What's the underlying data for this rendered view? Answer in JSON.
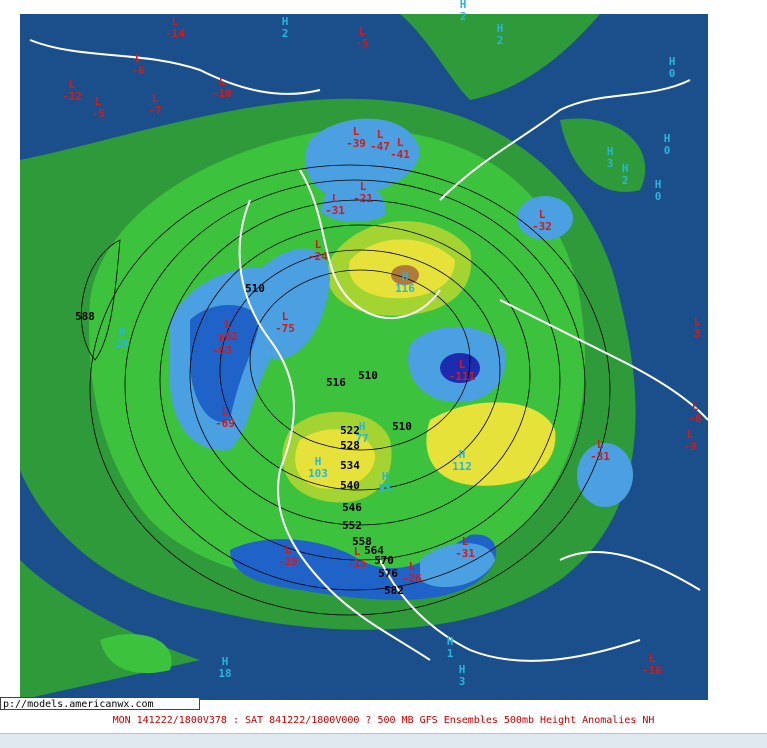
{
  "url_box": "p://models.americanwx.com",
  "caption": "MON 141222/1800V378 : SAT 841222/1800V000  ? 500 MB GFS Ensembles 500mb Height Anomalies NH",
  "centers": [
    {
      "letter": "L",
      "value": "-14"
    },
    {
      "letter": "L",
      "value": "-5"
    },
    {
      "letter": "L",
      "value": "-6"
    },
    {
      "letter": "L",
      "value": "-10"
    },
    {
      "letter": "L",
      "value": "-12"
    },
    {
      "letter": "L",
      "value": "-5"
    },
    {
      "letter": "L",
      "value": "-7"
    },
    {
      "letter": "L",
      "value": "-39"
    },
    {
      "letter": "L",
      "value": "-47"
    },
    {
      "letter": "L",
      "value": "-41"
    },
    {
      "letter": "L",
      "value": "-21"
    },
    {
      "letter": "L",
      "value": "-31"
    },
    {
      "letter": "L",
      "value": "-24"
    },
    {
      "letter": "L",
      "value": "-75"
    },
    {
      "letter": "L",
      "value": "-61"
    },
    {
      "letter": "L",
      "value": "-63"
    },
    {
      "letter": "L",
      "value": "-69"
    },
    {
      "letter": "L",
      "value": "-32"
    },
    {
      "letter": "L",
      "value": "-111"
    },
    {
      "letter": "L",
      "value": "-31"
    },
    {
      "letter": "L",
      "value": "-31"
    },
    {
      "letter": "L",
      "value": "-26"
    },
    {
      "letter": "L",
      "value": "-19"
    },
    {
      "letter": "L",
      "value": "-15"
    },
    {
      "letter": "L",
      "value": "-16"
    },
    {
      "letter": "L",
      "value": "-8"
    },
    {
      "letter": "L",
      "value": "-9"
    },
    {
      "letter": "L",
      "value": "3"
    },
    {
      "letter": "H",
      "value": "2"
    },
    {
      "letter": "H",
      "value": "2"
    },
    {
      "letter": "H",
      "value": "2"
    },
    {
      "letter": "H",
      "value": "0"
    },
    {
      "letter": "H",
      "value": "0"
    },
    {
      "letter": "H",
      "value": "3"
    },
    {
      "letter": "H",
      "value": "2"
    },
    {
      "letter": "H",
      "value": "0"
    },
    {
      "letter": "H",
      "value": "116"
    },
    {
      "letter": "H",
      "value": "77"
    },
    {
      "letter": "H",
      "value": "95"
    },
    {
      "letter": "H",
      "value": "103"
    },
    {
      "letter": "H",
      "value": "112"
    },
    {
      "letter": "H",
      "value": "18"
    },
    {
      "letter": "H",
      "value": "20"
    },
    {
      "letter": "H",
      "value": "3"
    },
    {
      "letter": "H",
      "value": "1"
    }
  ],
  "contours": [
    "588",
    "510",
    "516",
    "510",
    "510",
    "522",
    "528",
    "534",
    "540",
    "546",
    "552",
    "558",
    "564",
    "570",
    "576",
    "582"
  ]
}
